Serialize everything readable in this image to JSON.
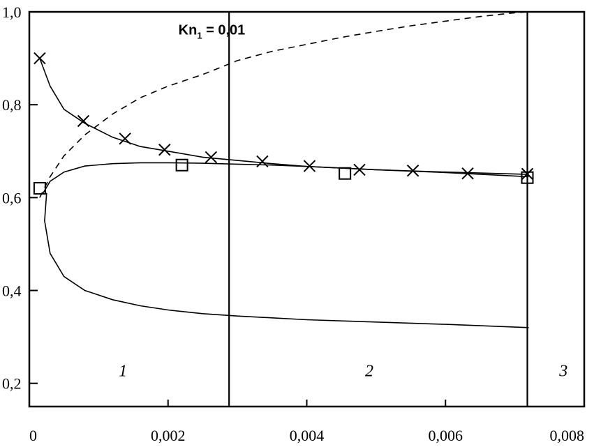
{
  "chart_data": {
    "type": "line",
    "title": "",
    "xlabel": "",
    "ylabel": "",
    "xlim": [
      0,
      0.008
    ],
    "ylim": [
      0.15,
      1.0
    ],
    "grid": false,
    "x_ticks": [
      {
        "value": 0,
        "label": "0"
      },
      {
        "value": 0.002,
        "label": "0,002"
      },
      {
        "value": 0.004,
        "label": "0,004"
      },
      {
        "value": 0.006,
        "label": "0,006"
      },
      {
        "value": 0.008,
        "label": "0,008"
      }
    ],
    "y_ticks": [
      {
        "value": 0.2,
        "label": "0,2"
      },
      {
        "value": 0.4,
        "label": "0,4"
      },
      {
        "value": 0.6,
        "label": "0,6"
      },
      {
        "value": 0.8,
        "label": "0,8"
      },
      {
        "value": 1.0,
        "label": "1,0"
      }
    ],
    "annotation": {
      "main": "Kn",
      "sub": "1",
      "rest": " = 0,01",
      "x": 0.00215,
      "y": 0.962
    },
    "region_boundaries": [
      0.00288,
      0.00718
    ],
    "regions": [
      {
        "label": "1",
        "x": 0.00135,
        "y": 0.23
      },
      {
        "label": "2",
        "x": 0.0049,
        "y": 0.23
      },
      {
        "label": "3",
        "x": 0.0077,
        "y": 0.23
      }
    ],
    "series": [
      {
        "style": "dashed",
        "x": [
          0.00015,
          0.0003,
          0.0005,
          0.0008,
          0.0012,
          0.0016,
          0.002,
          0.0025,
          0.003,
          0.0035,
          0.004,
          0.0045,
          0.005,
          0.0055,
          0.006,
          0.0065,
          0.007,
          0.0072
        ],
        "y": [
          0.6,
          0.645,
          0.69,
          0.735,
          0.78,
          0.815,
          0.84,
          0.865,
          0.895,
          0.915,
          0.93,
          0.945,
          0.958,
          0.97,
          0.98,
          0.99,
          0.998,
          1.0
        ]
      },
      {
        "style": "solid",
        "x": [
          0.00015,
          0.0003,
          0.0005,
          0.0008,
          0.0012,
          0.0016,
          0.002,
          0.0025,
          0.003,
          0.0035,
          0.004,
          0.005,
          0.006,
          0.0072
        ],
        "y": [
          0.9,
          0.84,
          0.79,
          0.76,
          0.73,
          0.71,
          0.7,
          0.687,
          0.68,
          0.673,
          0.667,
          0.66,
          0.655,
          0.65
        ]
      },
      {
        "style": "solid",
        "x": [
          0.0002,
          0.0003,
          0.0005,
          0.0008,
          0.0012,
          0.0016,
          0.002,
          0.0025,
          0.003,
          0.0035,
          0.004,
          0.005,
          0.006,
          0.0072
        ],
        "y": [
          0.61,
          0.635,
          0.655,
          0.668,
          0.673,
          0.675,
          0.675,
          0.674,
          0.672,
          0.67,
          0.667,
          0.66,
          0.654,
          0.645
        ]
      },
      {
        "style": "solid",
        "x": [
          0.00025,
          0.00022,
          0.0003,
          0.0005,
          0.0008,
          0.0012,
          0.0016,
          0.002,
          0.0025,
          0.003,
          0.0035,
          0.004,
          0.005,
          0.006,
          0.0072
        ],
        "y": [
          0.61,
          0.55,
          0.48,
          0.43,
          0.4,
          0.38,
          0.367,
          0.358,
          0.35,
          0.345,
          0.341,
          0.337,
          0.332,
          0.327,
          0.32
        ]
      }
    ],
    "markers_x": {
      "x": [
        0.00015,
        0.00078,
        0.00138,
        0.00195,
        0.00262,
        0.00336,
        0.00404,
        0.00476,
        0.00553,
        0.00632,
        0.00718
      ],
      "y": [
        0.9,
        0.765,
        0.727,
        0.703,
        0.687,
        0.678,
        0.668,
        0.66,
        0.658,
        0.652,
        0.651
      ]
    },
    "markers_square": {
      "x": [
        0.00015,
        0.0022,
        0.00455,
        0.00718
      ],
      "y": [
        0.62,
        0.67,
        0.652,
        0.643
      ]
    }
  }
}
